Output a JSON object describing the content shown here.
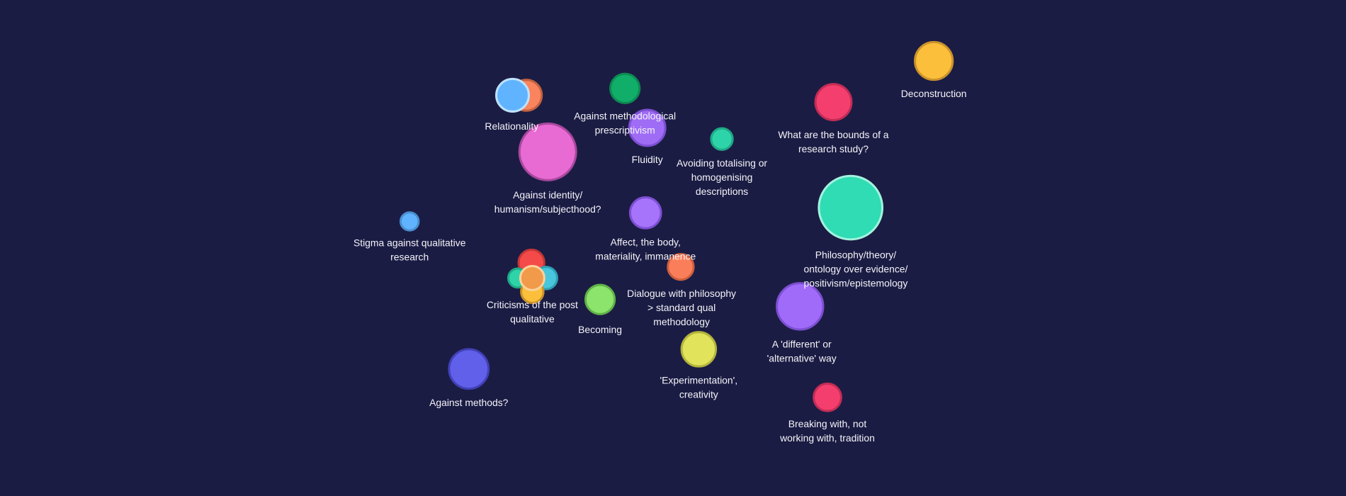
{
  "nodes": [
    {
      "label": [
        "Deconstruction"
      ]
    },
    {
      "label": [
        "Relationality"
      ]
    },
    {
      "label": [
        "Against methodological",
        "prescriptivism"
      ]
    },
    {
      "label": [
        "Fluidity"
      ]
    },
    {
      "label": [
        "Avoiding totalising or",
        "homogenising",
        "descriptions"
      ]
    },
    {
      "label": [
        "What are the bounds of a",
        "research study?"
      ]
    },
    {
      "label": [
        "Against identity/",
        "humanism/subjecthood?"
      ]
    },
    {
      "label": [
        "Philosophy/theory/",
        "ontology over evidence/",
        "positivism/epistemology"
      ]
    },
    {
      "label": [
        "Stigma against qualitative",
        "research"
      ]
    },
    {
      "label": [
        "Affect, the body,",
        "materiality, immanence"
      ]
    },
    {
      "label": [
        "Dialogue with philosophy",
        "> standard qual",
        "methodology"
      ]
    },
    {
      "label": [
        "Criticisms of the post",
        "qualitative"
      ]
    },
    {
      "label": [
        "Becoming"
      ]
    },
    {
      "label": [
        "A 'different' or",
        "'alternative' way"
      ]
    },
    {
      "label": [
        "'Experimentation',",
        "creativity"
      ]
    },
    {
      "label": [
        "Against methods?"
      ]
    },
    {
      "label": [
        "Breaking with, not",
        "working with, tradition"
      ]
    }
  ]
}
